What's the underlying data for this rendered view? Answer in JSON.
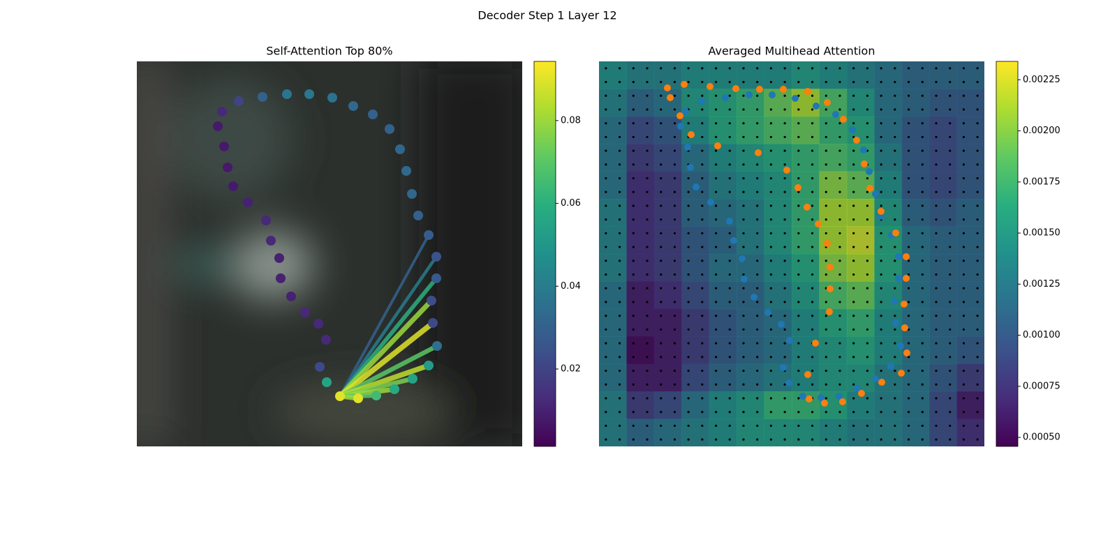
{
  "title": "Decoder Step 1 Layer 12",
  "chart_data": [
    {
      "type": "scatter",
      "title": "Self-Attention Top 80%",
      "xlim": [
        0,
        552
      ],
      "ylim": [
        552,
        0
      ],
      "x": [
        122,
        146,
        180,
        215,
        247,
        280,
        310,
        338,
        362,
        377,
        386,
        394,
        403,
        418,
        429,
        429,
        422,
        424,
        430,
        418,
        395,
        369,
        343,
        317,
        291,
        272,
        262,
        271,
        260,
        241,
        221,
        206,
        204,
        192,
        185,
        159,
        138,
        130,
        125,
        116
      ],
      "y": [
        72,
        57,
        51,
        47,
        47,
        52,
        64,
        76,
        97,
        126,
        157,
        190,
        221,
        249,
        280,
        311,
        343,
        375,
        408,
        436,
        455,
        470,
        479,
        483,
        480,
        460,
        438,
        399,
        376,
        360,
        337,
        311,
        282,
        257,
        228,
        202,
        179,
        152,
        122,
        93
      ],
      "values": [
        0.012,
        0.02,
        0.03,
        0.037,
        0.038,
        0.036,
        0.033,
        0.03,
        0.03,
        0.032,
        0.033,
        0.032,
        0.03,
        0.028,
        0.025,
        0.027,
        0.023,
        0.022,
        0.035,
        0.052,
        0.055,
        0.058,
        0.065,
        0.09,
        0.09,
        0.055,
        0.022,
        0.012,
        0.012,
        0.012,
        0.01,
        0.01,
        0.01,
        0.012,
        0.012,
        0.01,
        0.008,
        0.008,
        0.008,
        0.008
      ],
      "links": {
        "source": 24,
        "targets": [
          13,
          14,
          15,
          16,
          17,
          18,
          19,
          20,
          21,
          22,
          23
        ],
        "values": [
          0.03,
          0.04,
          0.06,
          0.08,
          0.09,
          0.07,
          0.085,
          0.075,
          0.08,
          0.07,
          0.08
        ]
      },
      "colorbar": {
        "clim": [
          0.0013,
          0.0943
        ],
        "ticks": [
          0.02,
          0.04,
          0.06,
          0.08
        ]
      }
    },
    {
      "type": "heatmap",
      "title": "Averaged Multihead Attention",
      "xlim": [
        0,
        552
      ],
      "ylim": [
        552,
        0
      ],
      "values": [
        [
          0.0014,
          0.0013,
          0.0013,
          0.0014,
          0.0014,
          0.0014,
          0.0014,
          0.0015,
          0.0014,
          0.0013,
          0.0012,
          0.0011,
          0.0011,
          0.0011
        ],
        [
          0.0013,
          0.0011,
          0.0012,
          0.0015,
          0.0016,
          0.0017,
          0.0019,
          0.0021,
          0.0018,
          0.0015,
          0.0012,
          0.0011,
          0.001,
          0.001
        ],
        [
          0.0012,
          0.0009,
          0.001,
          0.0014,
          0.0016,
          0.0017,
          0.0018,
          0.0019,
          0.0017,
          0.0016,
          0.0012,
          0.001,
          0.0009,
          0.001
        ],
        [
          0.0012,
          0.0008,
          0.0009,
          0.0012,
          0.0014,
          0.0015,
          0.0016,
          0.0017,
          0.0018,
          0.0017,
          0.0013,
          0.001,
          0.0009,
          0.001
        ],
        [
          0.0012,
          0.0007,
          0.0008,
          0.0011,
          0.0013,
          0.0014,
          0.0015,
          0.0017,
          0.002,
          0.0019,
          0.0014,
          0.001,
          0.0009,
          0.001
        ],
        [
          0.0013,
          0.0007,
          0.0008,
          0.0011,
          0.0012,
          0.0013,
          0.0015,
          0.0017,
          0.0021,
          0.0021,
          0.0015,
          0.0011,
          0.001,
          0.0011
        ],
        [
          0.0013,
          0.0007,
          0.0008,
          0.001,
          0.0011,
          0.0013,
          0.0015,
          0.0017,
          0.0021,
          0.0022,
          0.0016,
          0.0012,
          0.0011,
          0.0011
        ],
        [
          0.0013,
          0.0007,
          0.0008,
          0.001,
          0.0012,
          0.0012,
          0.0014,
          0.0016,
          0.002,
          0.0021,
          0.0016,
          0.0012,
          0.0011,
          0.0011
        ],
        [
          0.0012,
          0.0006,
          0.0007,
          0.0009,
          0.0011,
          0.0011,
          0.0013,
          0.0015,
          0.0018,
          0.0019,
          0.0015,
          0.0012,
          0.0011,
          0.0011
        ],
        [
          0.0012,
          0.0006,
          0.0006,
          0.0008,
          0.001,
          0.0011,
          0.0012,
          0.0014,
          0.0016,
          0.0017,
          0.0014,
          0.0012,
          0.0011,
          0.0011
        ],
        [
          0.0012,
          0.0005,
          0.0006,
          0.0008,
          0.001,
          0.0011,
          0.0012,
          0.0014,
          0.0015,
          0.0016,
          0.0014,
          0.0012,
          0.0011,
          0.001
        ],
        [
          0.0012,
          0.0006,
          0.0006,
          0.0009,
          0.0011,
          0.0012,
          0.0013,
          0.0014,
          0.0015,
          0.0015,
          0.0013,
          0.0012,
          0.001,
          0.0008
        ],
        [
          0.0013,
          0.0008,
          0.0009,
          0.0012,
          0.0014,
          0.0015,
          0.0017,
          0.0017,
          0.0016,
          0.0014,
          0.0013,
          0.0012,
          0.0009,
          0.0006
        ],
        [
          0.0013,
          0.0011,
          0.0012,
          0.0013,
          0.0014,
          0.0015,
          0.0015,
          0.0015,
          0.0014,
          0.0013,
          0.0013,
          0.0012,
          0.0009,
          0.0007
        ]
      ],
      "series": [
        {
          "color": "#1f77b4",
          "x": [
            124,
            117,
            127,
            131,
            139,
            160,
            187,
            193,
            205,
            208,
            222,
            242,
            261,
            273,
            264,
            272,
            292,
            318,
            344,
            370,
            396,
            418,
            432,
            425,
            423,
            429,
            429,
            419,
            404,
            396,
            387,
            379,
            363,
            339,
            311,
            281,
            248,
            215,
            181,
            147
          ],
          "y": [
            72,
            93,
            123,
            152,
            180,
            202,
            229,
            257,
            283,
            312,
            338,
            360,
            377,
            400,
            439,
            461,
            480,
            482,
            480,
            469,
            455,
            437,
            408,
            375,
            344,
            311,
            280,
            249,
            222,
            190,
            158,
            127,
            98,
            76,
            64,
            53,
            48,
            48,
            52,
            57
          ]
        },
        {
          "color": "#ff7f0e",
          "x": [
            98,
            102,
            116,
            132,
            122,
            159,
            170,
            196,
            230,
            228,
            264,
            269,
            285,
            299,
            298,
            314,
            327,
            327,
            350,
            331,
            369,
            331,
            380,
            330,
            388,
            310,
            404,
            299,
            425,
            301,
            440,
            323,
            440,
            349,
            437,
            376,
            438,
            405,
            441,
            433
          ],
          "y": [
            38,
            52,
            78,
            105,
            33,
            36,
            121,
            39,
            40,
            131,
            40,
            156,
            181,
            43,
            209,
            233,
            59,
            261,
            83,
            295,
            113,
            326,
            147,
            359,
            182,
            404,
            215,
            449,
            246,
            484,
            280,
            490,
            311,
            488,
            348,
            476,
            382,
            460,
            418,
            447
          ]
        }
      ],
      "colorbar": {
        "clim": [
          0.000456,
          0.00234
        ],
        "ticks": [
          {
            "value": 0.0005,
            "label": "0.00050"
          },
          0.00075,
          {
            "value": 0.001,
            "label": "0.00100"
          },
          0.00125,
          {
            "value": 0.0015,
            "label": "0.00150"
          },
          0.00175,
          {
            "value": 0.002,
            "label": "0.00200"
          },
          0.00225
        ]
      }
    }
  ]
}
